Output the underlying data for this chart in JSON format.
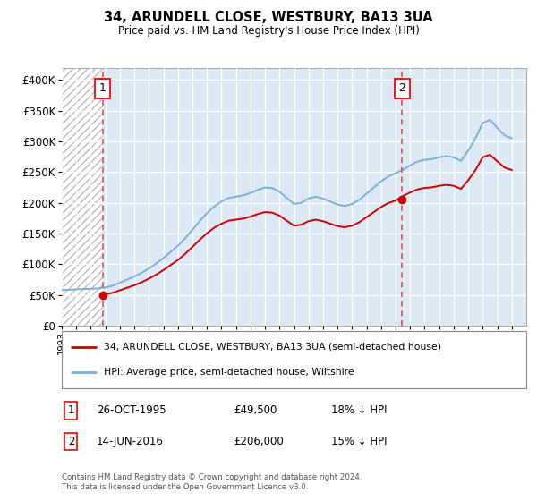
{
  "title": "34, ARUNDELL CLOSE, WESTBURY, BA13 3UA",
  "subtitle": "Price paid vs. HM Land Registry's House Price Index (HPI)",
  "background_color": "#dce9f5",
  "plot_bg_color": "#dce9f5",
  "hatch_facecolor": "#e8e8e8",
  "hatch_edgecolor": "#cccccc",
  "ylabel": "",
  "xlabel": "",
  "ylim": [
    0,
    420000
  ],
  "yticks": [
    0,
    50000,
    100000,
    150000,
    200000,
    250000,
    300000,
    350000,
    400000
  ],
  "ytick_labels": [
    "£0",
    "£50K",
    "£100K",
    "£150K",
    "£200K",
    "£250K",
    "£300K",
    "£350K",
    "£400K"
  ],
  "hpi_color": "#7bafd4",
  "price_color": "#cc0000",
  "vline_color": "#dd4444",
  "marker1_date": 1995.82,
  "marker1_price": 49500,
  "marker1_label": "1",
  "marker2_date": 2016.45,
  "marker2_price": 206000,
  "marker2_label": "2",
  "legend_line1": "34, ARUNDELL CLOSE, WESTBURY, BA13 3UA (semi-detached house)",
  "legend_line2": "HPI: Average price, semi-detached house, Wiltshire",
  "footer": "Contains HM Land Registry data © Crown copyright and database right 2024.\nThis data is licensed under the Open Government Licence v3.0.",
  "xmin": 1993,
  "xmax": 2025,
  "hpi_years": [
    1993.0,
    1993.5,
    1994.0,
    1994.5,
    1995.0,
    1995.5,
    1996.0,
    1996.5,
    1997.0,
    1997.5,
    1998.0,
    1998.5,
    1999.0,
    1999.5,
    2000.0,
    2000.5,
    2001.0,
    2001.5,
    2002.0,
    2002.5,
    2003.0,
    2003.5,
    2004.0,
    2004.5,
    2005.0,
    2005.5,
    2006.0,
    2006.5,
    2007.0,
    2007.5,
    2008.0,
    2008.5,
    2009.0,
    2009.5,
    2010.0,
    2010.5,
    2011.0,
    2011.5,
    2012.0,
    2012.5,
    2013.0,
    2013.5,
    2014.0,
    2014.5,
    2015.0,
    2015.5,
    2016.0,
    2016.5,
    2017.0,
    2017.5,
    2018.0,
    2018.5,
    2019.0,
    2019.5,
    2020.0,
    2020.5,
    2021.0,
    2021.5,
    2022.0,
    2022.5,
    2023.0,
    2023.5,
    2024.0
  ],
  "hpi_values": [
    58000,
    58500,
    59000,
    59500,
    60000,
    60500,
    62000,
    65000,
    70000,
    75000,
    80000,
    86000,
    93000,
    101000,
    110000,
    120000,
    130000,
    142000,
    156000,
    170000,
    183000,
    194000,
    202000,
    208000,
    210000,
    212000,
    216000,
    221000,
    225000,
    224000,
    218000,
    208000,
    198000,
    200000,
    207000,
    210000,
    207000,
    202000,
    197000,
    195000,
    198000,
    205000,
    215000,
    225000,
    235000,
    243000,
    248000,
    254000,
    261000,
    267000,
    270000,
    271000,
    274000,
    276000,
    274000,
    268000,
    285000,
    305000,
    330000,
    335000,
    322000,
    310000,
    305000
  ],
  "hpi_at_1995": 60250,
  "hpi_at_2016": 248000,
  "scale1_price": 49500,
  "scale2_price": 206000
}
